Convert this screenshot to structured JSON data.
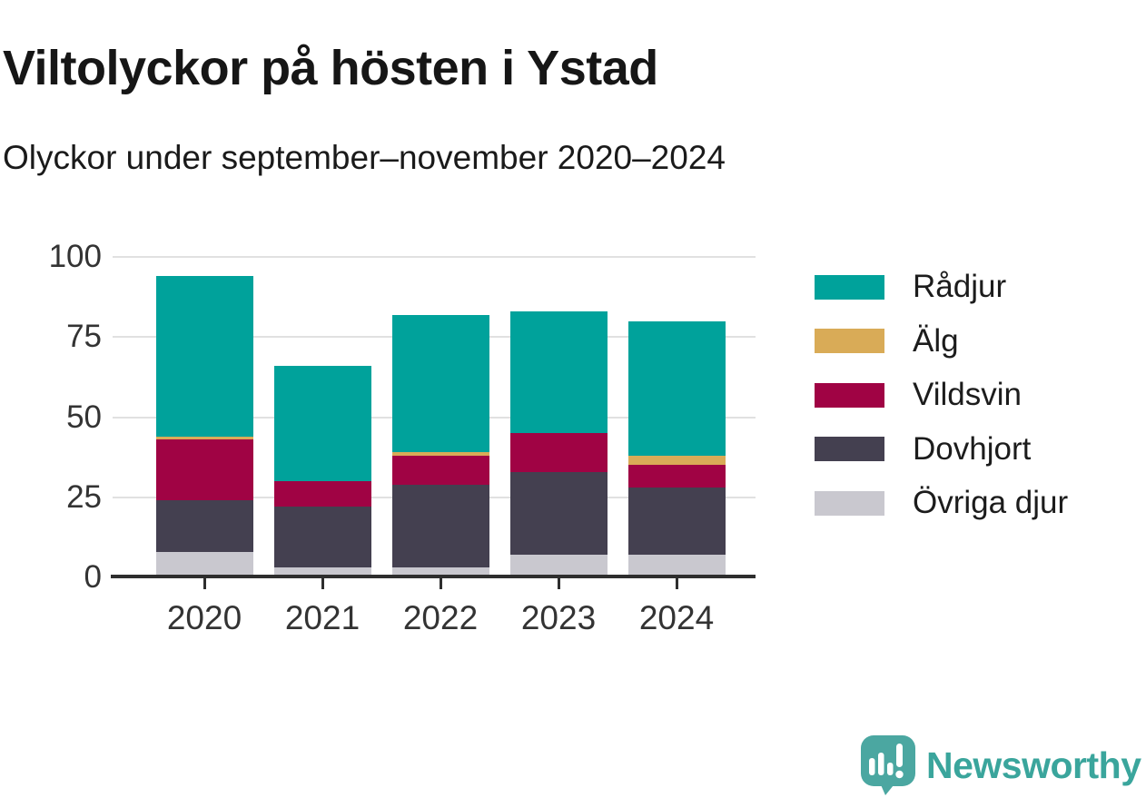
{
  "header": {
    "title": "Viltolyckor på hösten i Ystad",
    "subtitle": "Olyckor under september–november 2020–2024"
  },
  "chart_data": {
    "type": "bar",
    "stacked": true,
    "title": "Viltolyckor på hösten i Ystad",
    "subtitle": "Olyckor under september–november 2020–2024",
    "categories": [
      "2020",
      "2021",
      "2022",
      "2023",
      "2024"
    ],
    "series": [
      {
        "name": "Övriga djur",
        "color": "#c9c8cf",
        "values": [
          8,
          3,
          3,
          7,
          7
        ]
      },
      {
        "name": "Dovhjort",
        "color": "#444050",
        "values": [
          16,
          19,
          26,
          26,
          21
        ]
      },
      {
        "name": "Vildsvin",
        "color": "#a00344",
        "values": [
          19,
          8,
          9,
          12,
          7
        ]
      },
      {
        "name": "Älg",
        "color": "#d9ab57",
        "values": [
          1,
          0,
          1,
          0,
          3
        ]
      },
      {
        "name": "Rådjur",
        "color": "#00a29b",
        "values": [
          50,
          36,
          43,
          38,
          42
        ]
      }
    ],
    "totals": [
      94,
      66,
      82,
      83,
      80
    ],
    "ylim": [
      0,
      100
    ],
    "yticks": [
      0,
      25,
      50,
      75,
      100
    ],
    "grid": "horizontal-only",
    "legend_position": "right",
    "stack_order_bottom_to_top": [
      "Övriga djur",
      "Dovhjort",
      "Vildsvin",
      "Älg",
      "Rådjur"
    ]
  },
  "legend": {
    "items": [
      {
        "label": "Rådjur",
        "color": "#00a29b"
      },
      {
        "label": "Älg",
        "color": "#d9ab57"
      },
      {
        "label": "Vildsvin",
        "color": "#a00344"
      },
      {
        "label": "Dovhjort",
        "color": "#444050"
      },
      {
        "label": "Övriga djur",
        "color": "#c9c8cf"
      }
    ]
  },
  "branding": {
    "logo_text": "Newsworthy",
    "logo_color": "#3aa59c",
    "icon": "newsworthy-speech-bubble-bar-chart-icon"
  },
  "colors": {
    "background": "#ffffff",
    "axis": "#2e2e2e",
    "gridline": "#e1e1e1",
    "tick_text": "#333333",
    "title_text": "#161616"
  }
}
